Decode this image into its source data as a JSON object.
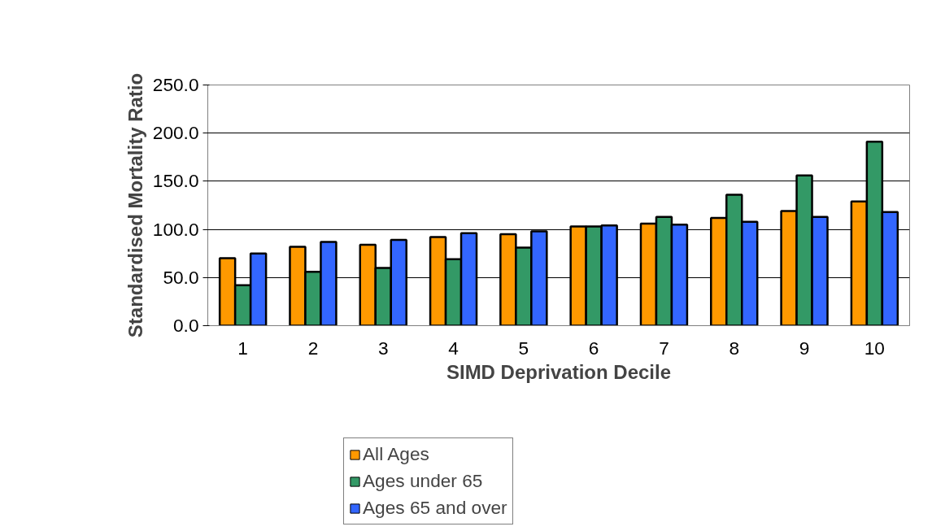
{
  "chart_data": {
    "type": "bar",
    "xlabel": "SIMD Deprivation Decile",
    "ylabel": "Standardised Mortality Ratio",
    "categories": [
      "1",
      "2",
      "3",
      "4",
      "5",
      "6",
      "7",
      "8",
      "9",
      "10"
    ],
    "series": [
      {
        "name": "All Ages",
        "color": "#ff9900",
        "values": [
          70,
          82,
          84,
          92,
          95,
          103,
          106,
          112,
          119,
          129
        ]
      },
      {
        "name": "Ages under 65",
        "color": "#339966",
        "values": [
          42,
          56,
          60,
          69,
          81,
          103,
          113,
          136,
          156,
          191
        ]
      },
      {
        "name": "Ages 65 and over",
        "color": "#3366ff",
        "values": [
          75,
          87,
          89,
          96,
          98,
          104,
          105,
          108,
          113,
          118
        ]
      }
    ],
    "ylim": [
      0,
      250
    ],
    "yticks": [
      {
        "value": 0,
        "label": "0.0"
      },
      {
        "value": 50,
        "label": "50.0"
      },
      {
        "value": 100,
        "label": "100.0"
      },
      {
        "value": 150,
        "label": "150.0"
      },
      {
        "value": 200,
        "label": "200.0"
      },
      {
        "value": 250,
        "label": "250.0"
      }
    ],
    "grid": "y",
    "legend": "bottom"
  }
}
